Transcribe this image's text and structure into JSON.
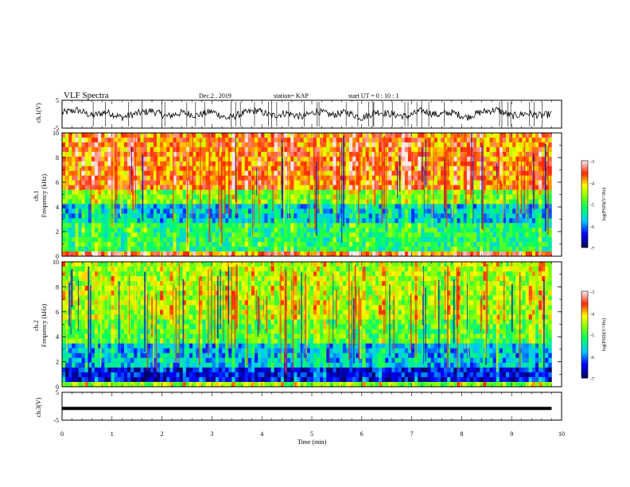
{
  "header": {
    "title": "VLF Spectra",
    "date": "Dec.2 , 2019",
    "station": "station= KAP",
    "start": "start  UT =  0 : 10 : 1"
  },
  "chart_data": [
    {
      "type": "line",
      "panel": "ch1-waveform",
      "ylabel": "ch.1(V)",
      "ylim": [
        -5,
        5
      ],
      "yticks": [
        "5",
        "-5"
      ],
      "x": [
        0.0,
        0.3,
        0.6,
        0.9,
        1.2,
        1.5,
        1.8,
        2.1,
        2.4,
        2.7,
        3.0,
        3.3,
        3.6,
        3.9,
        4.2,
        4.5,
        4.8,
        5.1,
        5.4,
        5.7,
        6.0,
        6.3,
        6.6,
        6.9,
        7.2,
        7.5,
        7.8,
        8.1,
        8.4,
        8.7,
        9.0,
        9.3,
        9.6,
        9.8
      ],
      "y": [
        0.5,
        1.5,
        -0.5,
        0.8,
        -1.2,
        0.3,
        1.2,
        -0.8,
        0.6,
        -0.4,
        1.0,
        -1.5,
        0.2,
        1.4,
        -0.6,
        0.4,
        -1.0,
        1.1,
        -0.3,
        0.7,
        -1.3,
        0.9,
        0.0,
        -0.9,
        1.3,
        -0.2,
        0.6,
        -1.1,
        0.8,
        1.6,
        -0.7,
        0.3,
        -0.5,
        0.1
      ]
    },
    {
      "type": "heatmap",
      "panel": "ch1-spectrogram",
      "ylabel": "ch.1",
      "ylabel2": "Frequency (kHz)",
      "ylim": [
        0,
        10
      ],
      "yticks": [
        "0",
        "2",
        "4",
        "6",
        "8",
        "10"
      ],
      "colorbar": {
        "label": "log(PSD)(V²/Hz)",
        "range": [
          -7,
          -3
        ],
        "ticks": [
          "-3",
          "-4",
          "-5",
          "-6",
          "-7"
        ]
      }
    },
    {
      "type": "heatmap",
      "panel": "ch2-spectrogram",
      "ylabel": "ch.2",
      "ylabel2": "Frequency (kHz)",
      "ylim": [
        0,
        10
      ],
      "yticks": [
        "0",
        "2",
        "4",
        "6",
        "8",
        "10"
      ],
      "colorbar": {
        "label": "log(PSD)(V²/Hz)",
        "range": [
          -7,
          -3
        ],
        "ticks": [
          "-3",
          "-4",
          "-5",
          "-6",
          "-7"
        ]
      }
    },
    {
      "type": "line",
      "panel": "ch3-waveform",
      "ylabel": "ch.3(V)",
      "ylim": [
        -5,
        5
      ],
      "yticks": [
        "5",
        "-5"
      ],
      "x": [
        0.0,
        9.8
      ],
      "y": [
        -0.8,
        -0.8
      ]
    }
  ],
  "xaxis": {
    "label": "Time (min)",
    "xlim": [
      0,
      10
    ],
    "ticks": [
      "0",
      "1",
      "2",
      "3",
      "4",
      "5",
      "6",
      "7",
      "8",
      "9",
      "10"
    ]
  },
  "colors": {
    "axis": "#000000",
    "red": "#ff0000",
    "yellow": "#ffff00",
    "green": "#00ff00",
    "cyan": "#00ffff",
    "blue": "#0000ff",
    "navy": "#000080"
  }
}
